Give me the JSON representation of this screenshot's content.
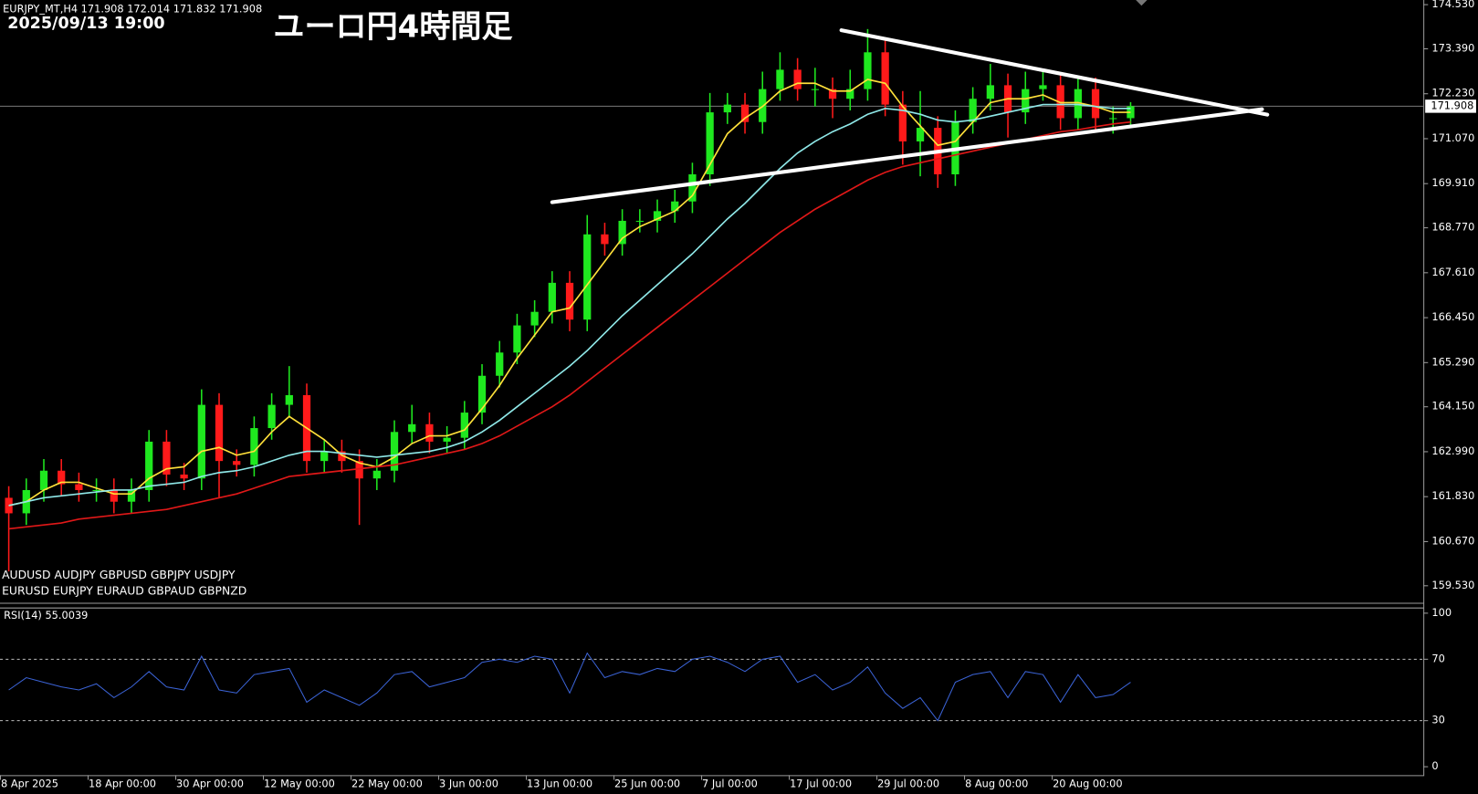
{
  "chart_data": [
    {
      "type": "candlestick",
      "title": "ユーロ円4時間足",
      "subtitle": "2025/09/13 19:00",
      "header": "EURJPY_MT,H4  171.908 172.014 171.832 171.908",
      "symbols": [
        "AUDUSD  AUDJPY   GBPUSD  GBPJPY  USDJPY",
        "EURUSD  EURJPY   EURAUD  GBPAUD  GBPNZD"
      ],
      "xlim": [
        0,
        81.2
      ],
      "xticks": [
        {
          "value": 0,
          "label": "8 Apr 2025"
        },
        {
          "value": 5,
          "label": "18 Apr 00:00"
        },
        {
          "value": 10,
          "label": "30 Apr 00:00"
        },
        {
          "value": 15,
          "label": "12 May 00:00"
        },
        {
          "value": 20,
          "label": "22 May 00:00"
        },
        {
          "value": 25,
          "label": "3 Jun 00:00"
        },
        {
          "value": 30,
          "label": "13 Jun 00:00"
        },
        {
          "value": 35,
          "label": "25 Jun 00:00"
        },
        {
          "value": 40,
          "label": "7 Jul 00:00"
        },
        {
          "value": 45,
          "label": "17 Jul 00:00"
        },
        {
          "value": 50,
          "label": "29 Jul 00:00"
        },
        {
          "value": 55,
          "label": "8 Aug 00:00"
        },
        {
          "value": 60,
          "label": "20 Aug 00:00"
        }
      ],
      "ylim": [
        159.09,
        174.65
      ],
      "yticks": [
        {
          "value": 174.53,
          "label": "174.530"
        },
        {
          "value": 173.39,
          "label": "173.390"
        },
        {
          "value": 172.23,
          "label": "172.230"
        },
        {
          "value": 171.07,
          "label": "171.070"
        },
        {
          "value": 169.91,
          "label": "169.910"
        },
        {
          "value": 168.77,
          "label": "168.770"
        },
        {
          "value": 167.61,
          "label": "167.610"
        },
        {
          "value": 166.45,
          "label": "166.450"
        },
        {
          "value": 165.29,
          "label": "165.290"
        },
        {
          "value": 164.15,
          "label": "164.150"
        },
        {
          "value": 162.99,
          "label": "162.990"
        },
        {
          "value": 161.83,
          "label": "161.830"
        },
        {
          "value": 160.67,
          "label": "160.670"
        },
        {
          "value": 159.53,
          "label": "159.530"
        }
      ],
      "up_color": "#1fe81f",
      "down_color": "#ff1a1a",
      "open": [
        161.8,
        161.4,
        162.0,
        162.5,
        162.15,
        162.0,
        162.0,
        161.7,
        162.0,
        163.25,
        162.4,
        162.3,
        164.2,
        162.75,
        162.65,
        163.6,
        164.2,
        164.45,
        162.75,
        163.0,
        162.75,
        162.3,
        162.5,
        163.5,
        163.7,
        163.25,
        163.35,
        164.0,
        164.95,
        165.55,
        166.25,
        166.6,
        167.35,
        166.4,
        168.6,
        168.35,
        168.95,
        168.95,
        169.2,
        169.45,
        170.15,
        171.75,
        171.95,
        171.5,
        172.35,
        172.85,
        172.35,
        172.35,
        172.1,
        172.35,
        173.3,
        171.95,
        171.0,
        171.35,
        170.15,
        171.5,
        172.1,
        172.45,
        171.75,
        172.35,
        172.45,
        171.6,
        172.35,
        171.6,
        171.6
      ],
      "high": [
        162.1,
        162.3,
        162.8,
        162.8,
        162.45,
        162.3,
        162.3,
        162.3,
        163.55,
        163.55,
        162.7,
        164.6,
        164.5,
        163.05,
        163.9,
        164.5,
        165.2,
        164.75,
        163.3,
        163.3,
        163.05,
        162.8,
        163.8,
        164.2,
        164.0,
        163.65,
        164.3,
        165.25,
        165.85,
        166.55,
        166.9,
        167.65,
        167.65,
        169.1,
        168.9,
        169.25,
        169.25,
        169.5,
        169.75,
        170.45,
        172.25,
        172.25,
        172.25,
        172.8,
        173.3,
        173.15,
        172.9,
        172.65,
        172.85,
        173.9,
        173.6,
        172.3,
        172.3,
        171.65,
        171.8,
        172.4,
        173.0,
        172.75,
        172.8,
        172.8,
        172.75,
        172.65,
        172.65,
        171.9,
        172.014
      ],
      "low": [
        159.9,
        161.1,
        161.7,
        161.85,
        161.7,
        161.7,
        161.4,
        161.4,
        161.7,
        162.1,
        162.0,
        162.0,
        161.8,
        162.35,
        162.35,
        163.3,
        163.9,
        162.45,
        162.45,
        162.45,
        161.1,
        162.0,
        162.2,
        163.2,
        162.95,
        162.95,
        163.05,
        163.7,
        164.65,
        165.25,
        165.95,
        166.3,
        166.1,
        166.1,
        168.05,
        168.05,
        168.65,
        168.65,
        168.9,
        169.15,
        169.85,
        171.45,
        171.2,
        171.2,
        172.05,
        172.05,
        171.9,
        171.6,
        171.8,
        172.05,
        171.65,
        170.4,
        170.1,
        169.8,
        169.85,
        171.2,
        171.8,
        171.1,
        171.45,
        172.05,
        171.3,
        171.3,
        171.3,
        171.2,
        171.4
      ],
      "close": [
        161.4,
        162.0,
        162.5,
        162.15,
        162.0,
        162.0,
        161.7,
        162.0,
        163.25,
        162.4,
        162.3,
        164.2,
        162.75,
        162.65,
        163.6,
        164.2,
        164.45,
        162.75,
        163.0,
        162.75,
        162.3,
        162.5,
        163.5,
        163.7,
        163.25,
        163.35,
        164.0,
        164.95,
        165.55,
        166.25,
        166.6,
        167.35,
        166.4,
        168.6,
        168.35,
        168.95,
        168.95,
        169.2,
        169.45,
        170.15,
        171.75,
        171.95,
        171.5,
        172.35,
        172.85,
        172.35,
        172.35,
        172.1,
        172.35,
        173.3,
        171.95,
        171.0,
        171.35,
        170.15,
        171.5,
        172.1,
        172.45,
        171.75,
        172.35,
        172.45,
        171.6,
        172.35,
        171.6,
        171.6,
        171.908
      ],
      "series": [
        {
          "color": "#ffe03a",
          "values": [
            161.6,
            161.7,
            162.0,
            162.2,
            162.2,
            162.05,
            161.9,
            161.9,
            162.3,
            162.55,
            162.6,
            163.0,
            163.1,
            162.9,
            163.0,
            163.5,
            163.9,
            163.6,
            163.3,
            162.9,
            162.7,
            162.6,
            162.85,
            163.2,
            163.4,
            163.4,
            163.55,
            164.1,
            164.7,
            165.4,
            166.0,
            166.6,
            166.7,
            167.3,
            167.9,
            168.5,
            168.8,
            169.0,
            169.2,
            169.6,
            170.4,
            171.2,
            171.6,
            171.9,
            172.3,
            172.5,
            172.5,
            172.3,
            172.3,
            172.6,
            172.5,
            171.9,
            171.4,
            170.9,
            171.0,
            171.5,
            172.0,
            172.1,
            172.1,
            172.2,
            172.0,
            172.0,
            171.9,
            171.75,
            171.75
          ]
        },
        {
          "color": "#8fe8e8",
          "values": [
            161.6,
            161.7,
            161.8,
            161.85,
            161.9,
            161.95,
            162.0,
            162.0,
            162.1,
            162.15,
            162.2,
            162.35,
            162.45,
            162.5,
            162.6,
            162.75,
            162.9,
            163.0,
            163.0,
            162.95,
            162.9,
            162.85,
            162.9,
            162.95,
            163.0,
            163.1,
            163.25,
            163.5,
            163.8,
            164.15,
            164.5,
            164.85,
            165.2,
            165.6,
            166.05,
            166.5,
            166.9,
            167.3,
            167.7,
            168.1,
            168.55,
            169.0,
            169.4,
            169.85,
            170.3,
            170.7,
            171.0,
            171.25,
            171.45,
            171.7,
            171.85,
            171.8,
            171.7,
            171.55,
            171.5,
            171.55,
            171.65,
            171.75,
            171.85,
            171.95,
            171.95,
            171.95,
            171.9,
            171.85,
            171.85
          ]
        },
        {
          "color": "#e01818",
          "values": [
            161.0,
            161.05,
            161.1,
            161.15,
            161.25,
            161.3,
            161.35,
            161.4,
            161.45,
            161.5,
            161.6,
            161.7,
            161.8,
            161.9,
            162.05,
            162.2,
            162.35,
            162.4,
            162.45,
            162.5,
            162.55,
            162.6,
            162.65,
            162.75,
            162.85,
            162.95,
            163.05,
            163.2,
            163.4,
            163.65,
            163.9,
            164.15,
            164.45,
            164.8,
            165.15,
            165.5,
            165.85,
            166.2,
            166.55,
            166.9,
            167.25,
            167.6,
            167.95,
            168.3,
            168.65,
            168.95,
            169.25,
            169.5,
            169.75,
            170.0,
            170.2,
            170.35,
            170.45,
            170.55,
            170.65,
            170.75,
            170.85,
            170.95,
            171.05,
            171.15,
            171.25,
            171.3,
            171.38,
            171.45,
            171.5
          ]
        }
      ],
      "current_price": {
        "value": 171.908,
        "label": "171.908"
      },
      "trendlines": [
        {
          "color": "#ffffff",
          "x": [
            48.0,
            72.3
          ],
          "y": [
            173.87,
            171.69
          ]
        },
        {
          "color": "#ffffff",
          "x": [
            31.5,
            72.0
          ],
          "y": [
            169.43,
            171.83
          ]
        }
      ]
    },
    {
      "type": "line",
      "title": "RSI(14) 55.0039",
      "xlim": [
        0,
        81.2
      ],
      "ylim": [
        -5.5,
        103.7
      ],
      "yticks": [
        100,
        70,
        30,
        0
      ],
      "levels": [
        70,
        30
      ],
      "series": [
        {
          "color": "#3b63d6",
          "values": [
            50,
            58,
            55,
            52,
            50,
            54,
            45,
            52,
            62,
            52,
            50,
            72,
            50,
            48,
            60,
            62,
            64,
            42,
            50,
            45,
            40,
            48,
            60,
            62,
            52,
            55,
            58,
            68,
            70,
            68,
            72,
            70,
            48,
            74,
            58,
            62,
            60,
            64,
            62,
            70,
            72,
            68,
            62,
            70,
            72,
            55,
            60,
            50,
            55,
            65,
            48,
            38,
            45,
            30,
            55,
            60,
            62,
            45,
            62,
            60,
            42,
            60,
            45,
            47,
            55.0039
          ]
        }
      ]
    }
  ]
}
